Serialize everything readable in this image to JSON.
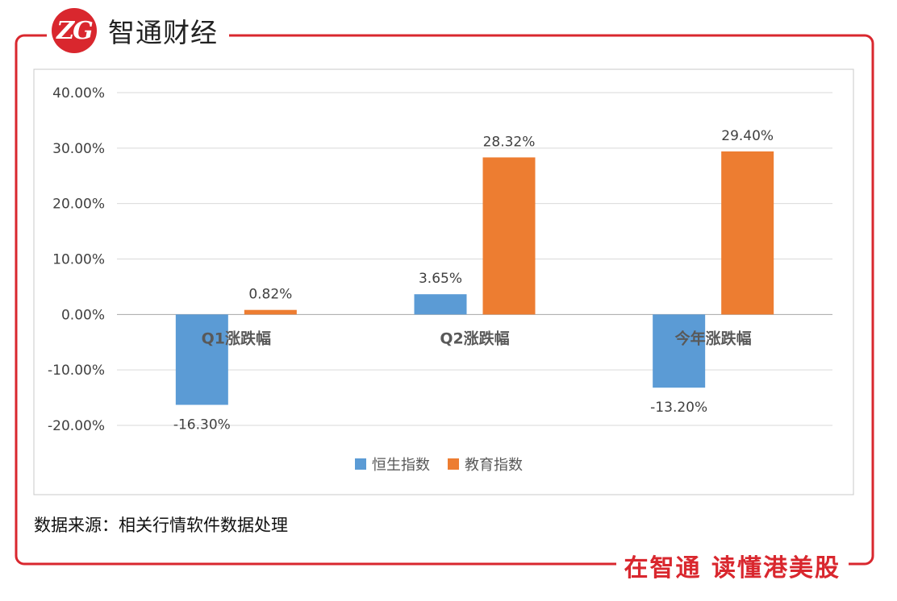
{
  "brand": {
    "logo_text": "ZG",
    "name": "智通财经"
  },
  "footer": {
    "slogan": "在智通  读懂港美股"
  },
  "source": "数据来源：相关行情软件数据处理",
  "colors": {
    "accent": "#d9272e",
    "series1": "#5b9bd5",
    "series2": "#ed7d31"
  },
  "chart_data": {
    "type": "bar",
    "categories": [
      "Q1涨跌幅",
      "Q2涨跌幅",
      "今年涨跌幅"
    ],
    "series": [
      {
        "name": "恒生指数",
        "values": [
          -16.3,
          3.65,
          -13.2
        ],
        "labels": [
          "-16.30%",
          "3.65%",
          "-13.20%"
        ]
      },
      {
        "name": "教育指数",
        "values": [
          0.82,
          28.32,
          29.4
        ],
        "labels": [
          "0.82%",
          "28.32%",
          "29.40%"
        ]
      }
    ],
    "ylim": [
      -20,
      40
    ],
    "yticks": [
      40,
      30,
      20,
      10,
      0,
      -10,
      -20
    ],
    "ytick_labels": [
      "40.00%",
      "30.00%",
      "20.00%",
      "10.00%",
      "0.00%",
      "-10.00%",
      "-20.00%"
    ],
    "grid": true,
    "legend_position": "bottom"
  }
}
